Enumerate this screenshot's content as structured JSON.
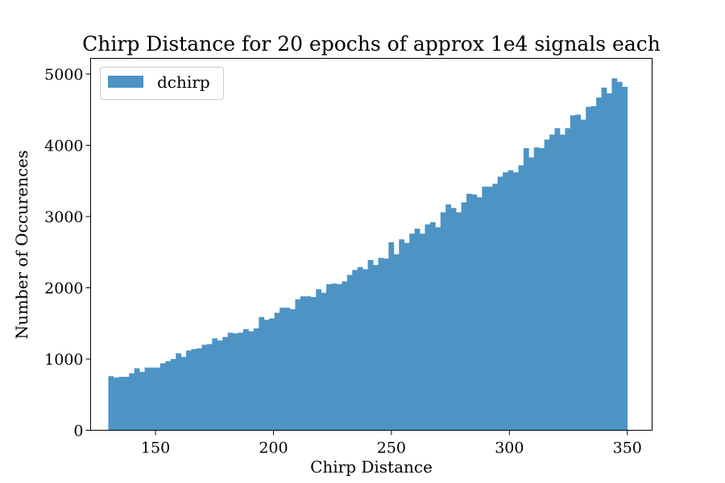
{
  "chart_data": {
    "type": "bar",
    "title": "Chirp Distance for 20 epochs of approx 1e4 signals each",
    "xlabel": "Chirp Distance",
    "ylabel": "Number of Occurences",
    "xlim": [
      122.5,
      360.5
    ],
    "ylim": [
      0,
      5220
    ],
    "xticks": [
      150,
      200,
      250,
      300,
      350
    ],
    "yticks": [
      0,
      1000,
      2000,
      3000,
      4000,
      5000
    ],
    "bin_start": 130,
    "bin_end": 350,
    "grid": false,
    "legend_position": "top-left",
    "series": [
      {
        "name": "dchirp",
        "color": "#4d94c5",
        "values": [
          760,
          740,
          750,
          750,
          800,
          870,
          820,
          880,
          880,
          880,
          940,
          970,
          1000,
          1080,
          1030,
          1120,
          1140,
          1150,
          1200,
          1210,
          1290,
          1260,
          1310,
          1370,
          1360,
          1370,
          1420,
          1390,
          1430,
          1590,
          1550,
          1570,
          1650,
          1720,
          1720,
          1700,
          1840,
          1880,
          1880,
          1870,
          1980,
          1930,
          2050,
          2060,
          2050,
          2090,
          2180,
          2250,
          2290,
          2260,
          2390,
          2320,
          2420,
          2410,
          2640,
          2470,
          2680,
          2630,
          2760,
          2830,
          2760,
          2890,
          2920,
          2850,
          3060,
          3170,
          3120,
          3060,
          3200,
          3320,
          3310,
          3270,
          3420,
          3420,
          3460,
          3560,
          3620,
          3650,
          3620,
          3720,
          3960,
          3830,
          3970,
          3960,
          4080,
          4150,
          4240,
          4150,
          4240,
          4420,
          4430,
          4360,
          4540,
          4550,
          4670,
          4810,
          4730,
          4940,
          4890,
          4820
        ]
      }
    ]
  }
}
